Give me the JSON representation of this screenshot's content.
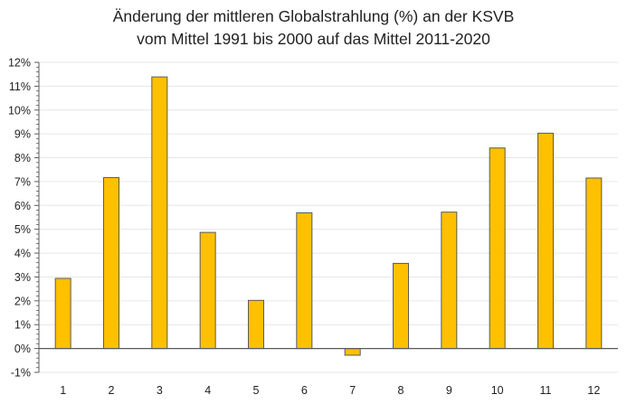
{
  "chart_data": {
    "type": "bar",
    "title": "Änderung der mittleren Globalstrahlung (%) an der KSVB",
    "subtitle": "vom Mittel 1991 bis 2000  auf das Mittel 2011-2020",
    "xlabel": "",
    "ylabel": "",
    "categories": [
      "1",
      "2",
      "3",
      "4",
      "5",
      "6",
      "7",
      "8",
      "9",
      "10",
      "11",
      "12"
    ],
    "values": [
      2.94,
      7.17,
      11.39,
      4.87,
      2.02,
      5.69,
      -0.28,
      3.57,
      5.72,
      8.41,
      9.03,
      7.15
    ],
    "ylim": [
      -1,
      12
    ],
    "yticks": [
      "-1%",
      "0%",
      "1%",
      "2%",
      "3%",
      "4%",
      "5%",
      "6%",
      "7%",
      "8%",
      "9%",
      "10%",
      "11%",
      "12%"
    ],
    "grid": true,
    "legend": "none",
    "colors": {
      "bar_fill": "#FFC000",
      "bar_edge": "#5a5a5a",
      "grid": "#e6e6e6",
      "axis": "#595959"
    }
  }
}
